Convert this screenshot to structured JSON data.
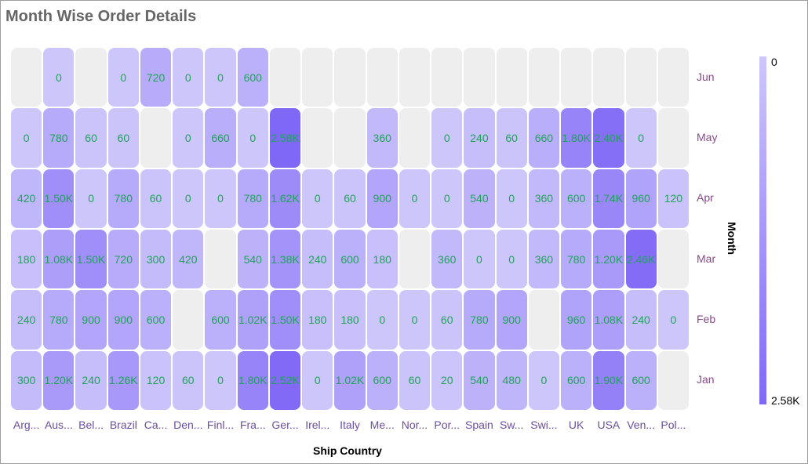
{
  "title": "Month Wise Order Details",
  "chart_data": {
    "type": "heatmap",
    "title": "Month Wise Order Details",
    "xlabel": "Ship Country",
    "ylabel": "Month",
    "x_categories": [
      "Arg...",
      "Aus...",
      "Bel...",
      "Brazil",
      "Ca...",
      "Den...",
      "Finl...",
      "Fra...",
      "Ger...",
      "Irel...",
      "Italy",
      "Me...",
      "Nor...",
      "Por...",
      "Spain",
      "Sw...",
      "Swi...",
      "UK",
      "USA",
      "Ven...",
      "Pol..."
    ],
    "y_categories": [
      "Jun",
      "May",
      "Apr",
      "Mar",
      "Feb",
      "Jan"
    ],
    "values": [
      [
        null,
        0,
        null,
        0,
        720,
        0,
        0,
        600,
        null,
        null,
        null,
        null,
        null,
        null,
        null,
        null,
        null,
        null,
        null,
        null,
        null
      ],
      [
        0,
        780,
        60,
        60,
        null,
        0,
        660,
        0,
        2580,
        null,
        null,
        360,
        null,
        0,
        240,
        60,
        660,
        1800,
        2400,
        0,
        null
      ],
      [
        420,
        1500,
        0,
        780,
        60,
        0,
        0,
        780,
        1620,
        0,
        60,
        900,
        0,
        0,
        540,
        0,
        360,
        600,
        1740,
        960,
        120
      ],
      [
        180,
        1080,
        1500,
        720,
        300,
        420,
        null,
        540,
        1380,
        240,
        600,
        180,
        null,
        360,
        0,
        0,
        360,
        780,
        1200,
        2460,
        null
      ],
      [
        240,
        780,
        900,
        900,
        600,
        null,
        600,
        1020,
        1500,
        180,
        180,
        0,
        0,
        60,
        780,
        900,
        null,
        960,
        1080,
        240,
        0
      ],
      [
        300,
        1200,
        240,
        1260,
        120,
        60,
        0,
        1800,
        2520,
        0,
        1020,
        600,
        60,
        20,
        540,
        480,
        0,
        600,
        1900,
        600,
        null
      ]
    ],
    "legend": {
      "min_label": "0",
      "max_label": "2.58K",
      "min": 0,
      "max": 2580,
      "placement": "right"
    },
    "colors": {
      "low": "#cdc6fb",
      "high": "#8068f7",
      "empty": "#eeeeee",
      "label": "#1fa35a"
    }
  }
}
